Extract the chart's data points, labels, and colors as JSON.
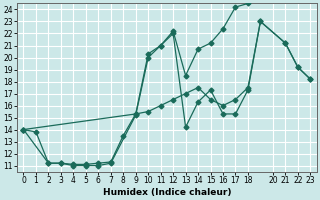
{
  "xlabel": "Humidex (Indice chaleur)",
  "bg_color": "#cce8e8",
  "grid_color": "#ffffff",
  "line_color": "#1a6b5a",
  "xlim": [
    -0.5,
    23.5
  ],
  "ylim": [
    10.5,
    24.5
  ],
  "xticks": [
    0,
    1,
    2,
    3,
    4,
    5,
    6,
    7,
    8,
    9,
    10,
    11,
    12,
    13,
    14,
    15,
    16,
    17,
    18,
    20,
    21,
    22,
    23
  ],
  "yticks": [
    11,
    12,
    13,
    14,
    15,
    16,
    17,
    18,
    19,
    20,
    21,
    22,
    23,
    24
  ],
  "line1_x": [
    0,
    1,
    2,
    3,
    4,
    5,
    6,
    7,
    8,
    9,
    10,
    11,
    12,
    13,
    14,
    15,
    16,
    17,
    18
  ],
  "line1_y": [
    14,
    13.8,
    11.2,
    11.2,
    11.1,
    11.1,
    11.2,
    11.3,
    13.5,
    15.3,
    20.3,
    21.0,
    22.2,
    18.5,
    20.7,
    21.2,
    22.4,
    24.2,
    24.5
  ],
  "line2_x": [
    0,
    2,
    3,
    4,
    5,
    6,
    7,
    9,
    10,
    11,
    12,
    13,
    14,
    15,
    16,
    17,
    18,
    19,
    21,
    22,
    23
  ],
  "line2_y": [
    14,
    11.2,
    11.2,
    11.0,
    11.0,
    11.0,
    11.2,
    15.2,
    20.0,
    21.0,
    22.0,
    14.2,
    16.3,
    17.3,
    15.3,
    15.3,
    17.3,
    23.0,
    21.2,
    19.2,
    18.2
  ],
  "line3_x": [
    0,
    9,
    10,
    11,
    12,
    13,
    14,
    15,
    16,
    17,
    18,
    19,
    21,
    22,
    23
  ],
  "line3_y": [
    14,
    15.3,
    15.5,
    16.0,
    16.5,
    17.0,
    17.5,
    16.5,
    16.0,
    16.5,
    17.5,
    23.0,
    21.2,
    19.2,
    18.2
  ],
  "marker_size": 2.5,
  "line_width": 0.9,
  "tick_fontsize": 5.5,
  "xlabel_fontsize": 6.5
}
